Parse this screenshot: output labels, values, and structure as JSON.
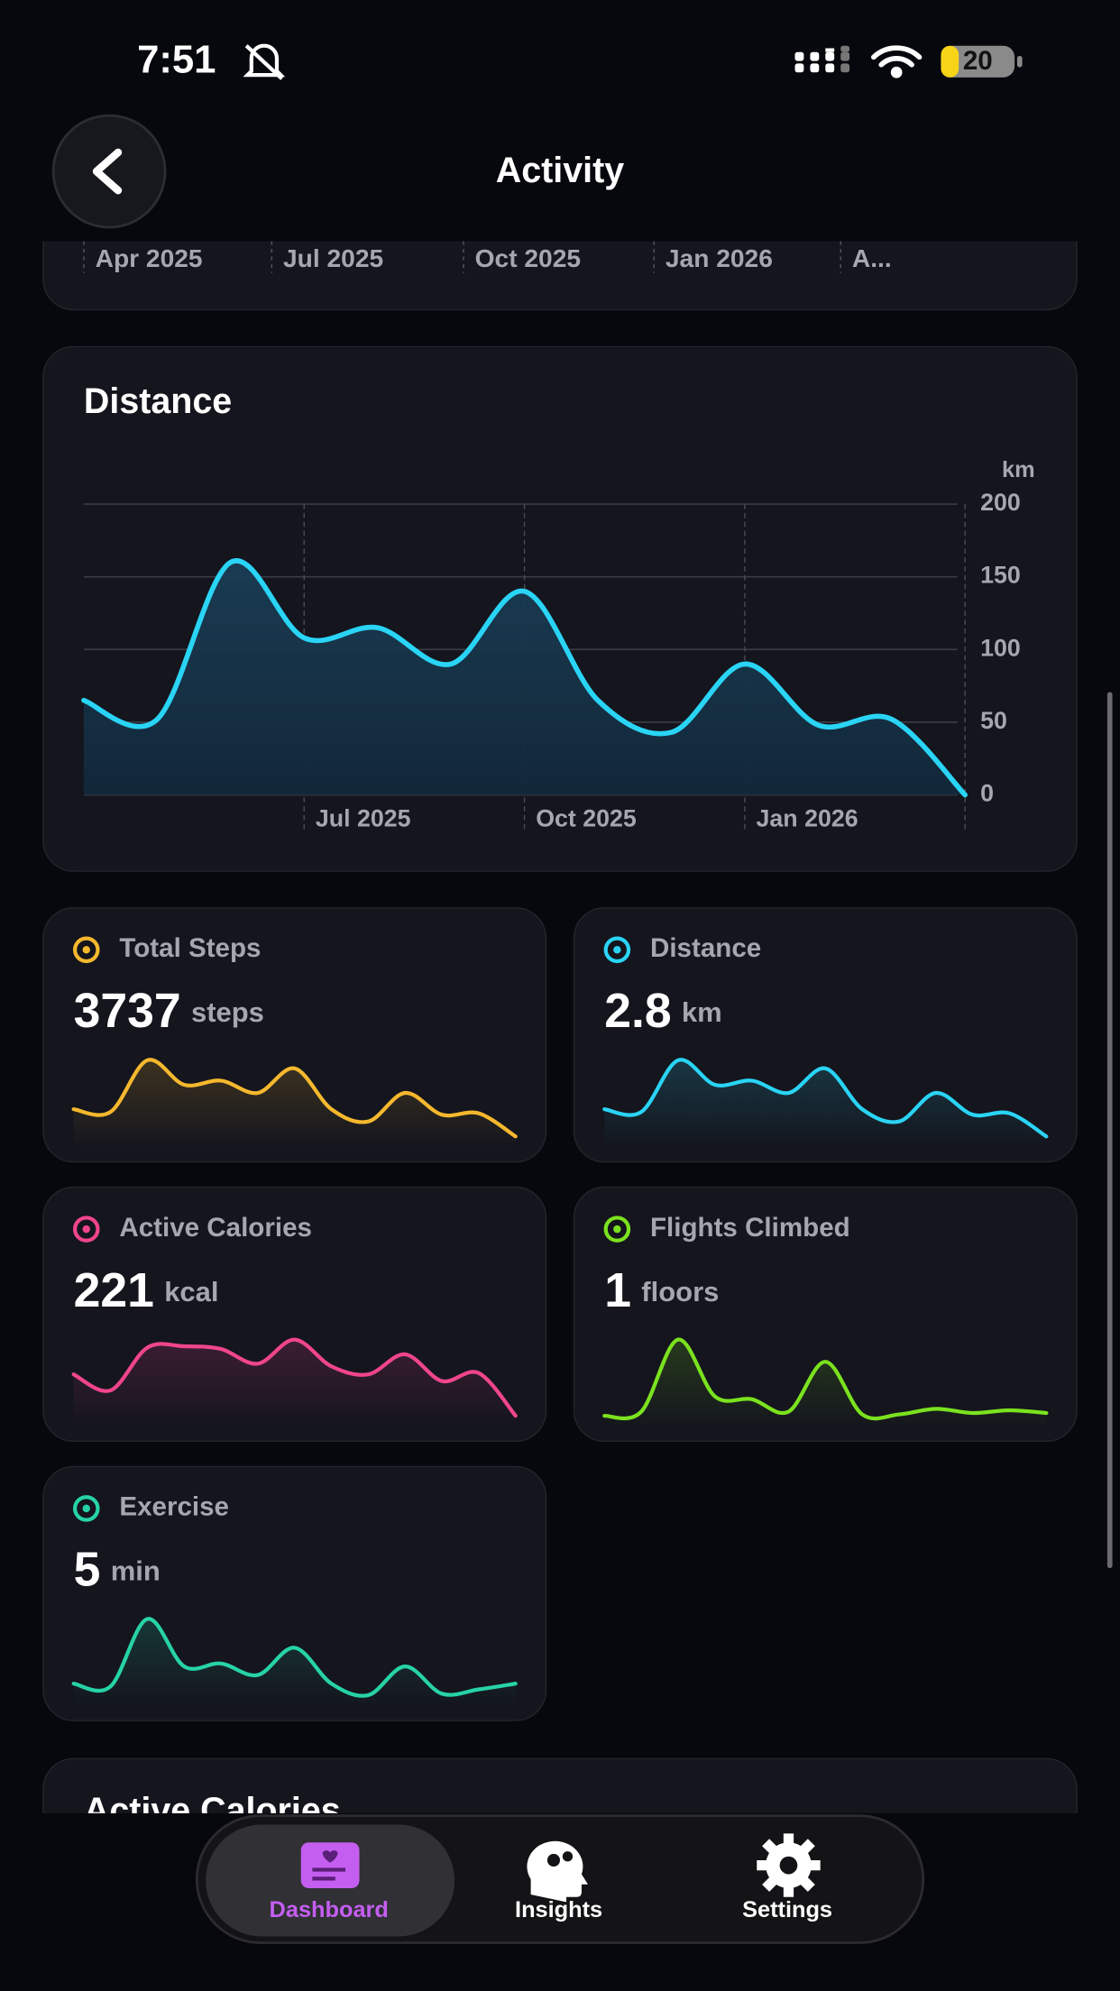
{
  "status_bar": {
    "time": "7:51",
    "battery": "20"
  },
  "header": {
    "title": "Activity"
  },
  "top_card": {
    "x_labels": [
      "Apr 2025",
      "Jul 2025",
      "Oct 2025",
      "Jan 2026",
      "A..."
    ]
  },
  "chart_data": {
    "type": "area",
    "title": "Distance",
    "y_label": "km",
    "x": [
      "2025-04",
      "2025-05",
      "2025-06",
      "2025-07",
      "2025-08",
      "2025-09",
      "2025-10",
      "2025-11",
      "2025-12",
      "2026-01",
      "2026-02",
      "2026-03",
      "2026-04"
    ],
    "values": [
      65,
      52,
      160,
      108,
      115,
      90,
      140,
      65,
      43,
      90,
      48,
      52,
      0
    ],
    "color": "#2ad4f5",
    "xlim": [
      "2025-04",
      "2026-04"
    ],
    "xticks": [
      {
        "value": "2025-07",
        "label": "Jul 2025"
      },
      {
        "value": "2025-10",
        "label": "Oct 2025"
      },
      {
        "value": "2026-01",
        "label": "Jan 2026"
      },
      {
        "value": "2026-04",
        "label": ""
      }
    ],
    "ylim": [
      0,
      200
    ],
    "yticks": [
      0,
      50,
      100,
      150,
      200
    ],
    "grid": true
  },
  "metric_cards": [
    {
      "title": "Total Steps",
      "value": "3737",
      "unit": "steps",
      "color": "#f5b82e",
      "sparkline": [
        20,
        18,
        56,
        38,
        41,
        32,
        50,
        20,
        11,
        32,
        16,
        17,
        0
      ]
    },
    {
      "title": "Distance",
      "value": "2.8",
      "unit": "km",
      "color": "#2ad4f5",
      "sparkline": [
        20,
        18,
        56,
        38,
        41,
        32,
        50,
        20,
        11,
        32,
        16,
        17,
        0
      ]
    },
    {
      "title": "Active Calories",
      "value": "221",
      "unit": "kcal",
      "color": "#f0458c",
      "sparkline": [
        31,
        19,
        51,
        52,
        50,
        39,
        57,
        37,
        31,
        46,
        26,
        32,
        0
      ]
    },
    {
      "title": "Flights Climbed",
      "value": "1",
      "unit": "floors",
      "color": "#7be21f",
      "sparkline": [
        1,
        4,
        56,
        15,
        13,
        4,
        40,
        2,
        2,
        6,
        3,
        5,
        3
      ]
    },
    {
      "title": "Exercise",
      "value": "5",
      "unit": "min",
      "color": "#27d3a6",
      "sparkline": [
        10,
        8,
        55,
        22,
        24,
        16,
        35,
        10,
        2,
        22,
        3,
        6,
        10
      ]
    }
  ],
  "next_section": {
    "title": "Active Calories"
  },
  "tab_bar": {
    "tabs": [
      "Dashboard",
      "Insights",
      "Settings"
    ]
  }
}
